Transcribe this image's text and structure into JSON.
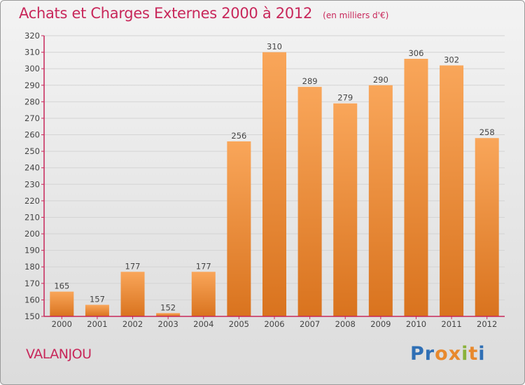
{
  "header": {
    "title": "Achats et Charges Externes 2000 à 2012",
    "subtitle": "(en milliers d'€)"
  },
  "footer": {
    "commune": "VALANJOU",
    "logo_text": "Proxiti"
  },
  "colors": {
    "title": "#c8275a",
    "bar_light": "#f9a65a",
    "bar_dark": "#d9731e",
    "axis": "#c8275a",
    "grid": "#d4d4d4",
    "logo": [
      "#2f6fb5",
      "#2f6fb5",
      "#e8892d",
      "#e8892d",
      "#8ab23a",
      "#e8892d",
      "#2f6fb5"
    ]
  },
  "chart_data": {
    "type": "bar",
    "categories": [
      "2000",
      "2001",
      "2002",
      "2003",
      "2004",
      "2005",
      "2006",
      "2007",
      "2008",
      "2009",
      "2010",
      "2011",
      "2012"
    ],
    "values": [
      165,
      157,
      177,
      152,
      177,
      256,
      310,
      289,
      279,
      290,
      306,
      302,
      258
    ],
    "data_labels": [
      "165",
      "157",
      "177",
      "152",
      "177",
      "256",
      "310",
      "289",
      "279",
      "290",
      "306",
      "302",
      "258"
    ],
    "ylim": [
      150,
      320
    ],
    "yticks": [
      150,
      160,
      170,
      180,
      190,
      200,
      210,
      220,
      230,
      240,
      250,
      260,
      270,
      280,
      290,
      300,
      310,
      320
    ],
    "grid": true,
    "xlabel": "",
    "ylabel": ""
  }
}
